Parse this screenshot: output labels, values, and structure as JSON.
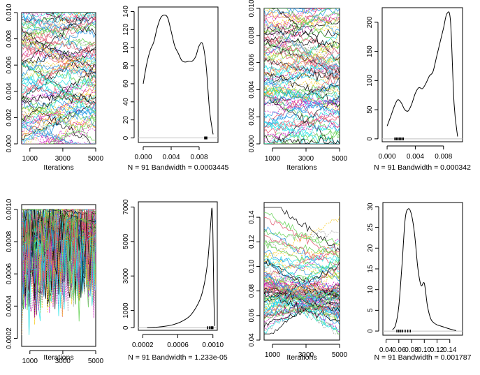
{
  "chart_data": [
    {
      "id": "trace-1",
      "type": "line",
      "xlabel": "Iterations",
      "ylabel": "",
      "xlim": [
        500,
        5000
      ],
      "ylim": [
        0,
        0.01
      ],
      "xticks": [
        1000,
        3000,
        5000
      ],
      "xtick_labels": [
        "1000",
        "3000",
        "5000"
      ],
      "yticks": [
        0.0,
        0.002,
        0.004,
        0.006,
        0.008,
        0.01
      ],
      "ytick_labels": [
        "0.000",
        "0.002",
        "0.004",
        "0.006",
        "0.008",
        "0.010"
      ],
      "n_chains": 91,
      "chain_value_range": [
        0.0,
        0.01
      ],
      "grid": false
    },
    {
      "id": "density-1",
      "type": "line",
      "xlabel": "N = 91   Bandwidth = 0.0003445",
      "ylabel": "",
      "xlim": [
        -0.0007,
        0.0107
      ],
      "ylim": [
        -5,
        145
      ],
      "xticks": [
        0.0,
        0.004,
        0.008
      ],
      "xtick_labels": [
        "0.000",
        "0.004",
        "0.008"
      ],
      "yticks": [
        0,
        20,
        40,
        60,
        80,
        100,
        120,
        140
      ],
      "ytick_labels": [
        "0",
        "20",
        "40",
        "60",
        "80",
        "100",
        "120",
        "140"
      ],
      "x": [
        0.0,
        0.0005,
        0.001,
        0.0015,
        0.002,
        0.0025,
        0.003,
        0.0035,
        0.004,
        0.0045,
        0.005,
        0.0055,
        0.006,
        0.0065,
        0.007,
        0.0075,
        0.008,
        0.0085,
        0.009,
        0.0095,
        0.01
      ],
      "y": [
        60,
        82,
        97,
        106,
        122,
        133,
        136,
        133,
        118,
        102,
        94,
        86,
        84,
        85,
        85,
        90,
        102,
        104,
        80,
        30,
        4
      ],
      "rug": [
        0.0088,
        0.0089,
        0.009,
        0.0091
      ],
      "grid": false
    },
    {
      "id": "trace-2",
      "type": "line",
      "xlabel": "Iterations",
      "ylabel": "",
      "xlim": [
        500,
        5000
      ],
      "ylim": [
        0,
        0.01
      ],
      "xticks": [
        1000,
        3000,
        5000
      ],
      "xtick_labels": [
        "1000",
        "3000",
        "5000"
      ],
      "yticks": [
        0.0,
        0.002,
        0.004,
        0.006,
        0.008,
        0.01
      ],
      "ytick_labels": [
        "0.000",
        "0.002",
        "0.004",
        "0.006",
        "0.008",
        "0.010"
      ],
      "n_chains": 91,
      "chain_value_range": [
        0.0,
        0.01
      ],
      "grid": false
    },
    {
      "id": "density-2",
      "type": "line",
      "xlabel": "N = 91   Bandwidth = 0.000342",
      "ylabel": "",
      "xlim": [
        -0.0007,
        0.0107
      ],
      "ylim": [
        -5,
        225
      ],
      "xticks": [
        0.0,
        0.004,
        0.008
      ],
      "xtick_labels": [
        "0.000",
        "0.004",
        "0.008"
      ],
      "yticks": [
        0,
        50,
        100,
        150,
        200
      ],
      "ytick_labels": [
        "0",
        "50",
        "100",
        "150",
        "200"
      ],
      "x": [
        0.0,
        0.0005,
        0.001,
        0.0015,
        0.002,
        0.0025,
        0.003,
        0.0035,
        0.004,
        0.0045,
        0.005,
        0.0055,
        0.006,
        0.0065,
        0.007,
        0.0075,
        0.008,
        0.0085,
        0.009,
        0.0095,
        0.01
      ],
      "y": [
        22,
        38,
        55,
        67,
        62,
        50,
        48,
        60,
        78,
        88,
        86,
        95,
        108,
        115,
        140,
        165,
        190,
        215,
        200,
        60,
        4
      ],
      "rug": [
        0.0011,
        0.0013,
        0.0015,
        0.0017,
        0.0019,
        0.0021,
        0.0023
      ],
      "grid": false
    },
    {
      "id": "trace-3",
      "type": "line",
      "xlabel": "Iterations",
      "ylabel": "",
      "xlim": [
        500,
        5000
      ],
      "ylim": [
        0.00015,
        0.00103
      ],
      "xticks": [
        1000,
        3000,
        5000
      ],
      "xtick_labels": [
        "1000",
        "3000",
        "5000"
      ],
      "yticks": [
        0.0002,
        0.0004,
        0.0006,
        0.0008,
        0.001
      ],
      "ytick_labels": [
        "0.0002",
        "0.0004",
        "0.0006",
        "0.0008",
        "0.0010"
      ],
      "n_chains": 91,
      "chain_value_range": [
        0.00022,
        0.001
      ],
      "grid": false
    },
    {
      "id": "density-3",
      "type": "line",
      "xlabel": "N = 91   Bandwidth = 1.233e-05",
      "ylabel": "",
      "xlim": [
        0.00015,
        0.00105
      ],
      "ylim": [
        -150,
        7300
      ],
      "xticks": [
        0.0002,
        0.0006,
        0.001
      ],
      "xtick_labels": [
        "0.0002",
        "0.0006",
        "0.0010"
      ],
      "yticks": [
        0,
        1000,
        3000,
        5000,
        7000
      ],
      "ytick_labels": [
        "0",
        "1000",
        "3000",
        "5000",
        "7000"
      ],
      "x": [
        0.00025,
        0.00035,
        0.00045,
        0.00055,
        0.00065,
        0.00075,
        0.00085,
        0.0009,
        0.00094,
        0.00096,
        0.00098,
        0.00099,
        0.001,
        0.00101,
        0.00102
      ],
      "y": [
        0,
        30,
        80,
        180,
        380,
        750,
        1600,
        2500,
        3800,
        5000,
        6400,
        6900,
        5500,
        2000,
        100
      ],
      "rug": [
        0.00094,
        0.00096,
        0.00098,
        0.00099,
        0.001
      ],
      "grid": false
    },
    {
      "id": "trace-4",
      "type": "line",
      "xlabel": "Iterations",
      "ylabel": "",
      "xlim": [
        500,
        5000
      ],
      "ylim": [
        0.04,
        0.152
      ],
      "xticks": [
        1000,
        3000,
        5000
      ],
      "xtick_labels": [
        "1000",
        "3000",
        "5000"
      ],
      "yticks": [
        0.04,
        0.06,
        0.08,
        0.1,
        0.12,
        0.14
      ],
      "ytick_labels": [
        "0.04",
        "0.06",
        "0.08",
        "0.10",
        "0.12",
        "0.14"
      ],
      "n_chains": 91,
      "chain_value_range": [
        0.045,
        0.148
      ],
      "grid": false
    },
    {
      "id": "density-4",
      "type": "line",
      "xlabel": "N = 91   Bandwidth = 0.001787",
      "ylabel": "",
      "xlim": [
        0.035,
        0.16
      ],
      "ylim": [
        -1,
        31
      ],
      "xticks": [
        0.04,
        0.06,
        0.08,
        0.1,
        0.12,
        0.14
      ],
      "xtick_labels": [
        "0.04",
        "0.06",
        "0.08",
        "0.10",
        "0.12",
        "0.14"
      ],
      "yticks": [
        0,
        5,
        10,
        15,
        20,
        25,
        30
      ],
      "ytick_labels": [
        "0",
        "5",
        "10",
        "15",
        "20",
        "25",
        "30"
      ],
      "x": [
        0.05,
        0.055,
        0.06,
        0.065,
        0.07,
        0.075,
        0.08,
        0.085,
        0.09,
        0.095,
        0.1,
        0.105,
        0.11,
        0.115,
        0.12,
        0.13,
        0.14,
        0.15
      ],
      "y": [
        0.3,
        1.5,
        6,
        16,
        27,
        29.5,
        28,
        23,
        15,
        11,
        11.5,
        6,
        3,
        2,
        1.5,
        1,
        0.5,
        0.1
      ],
      "rug": [
        0.057,
        0.06,
        0.063,
        0.066,
        0.07,
        0.074,
        0.078
      ],
      "grid": false
    }
  ],
  "colors": {
    "trace_palette": [
      "#000000",
      "#df536b",
      "#61d04f",
      "#2297e6",
      "#28e2e5",
      "#cd0bbc",
      "#f5c710",
      "#9e9e9e"
    ],
    "axis": "#000000",
    "baseline": "#c0c0c0"
  }
}
